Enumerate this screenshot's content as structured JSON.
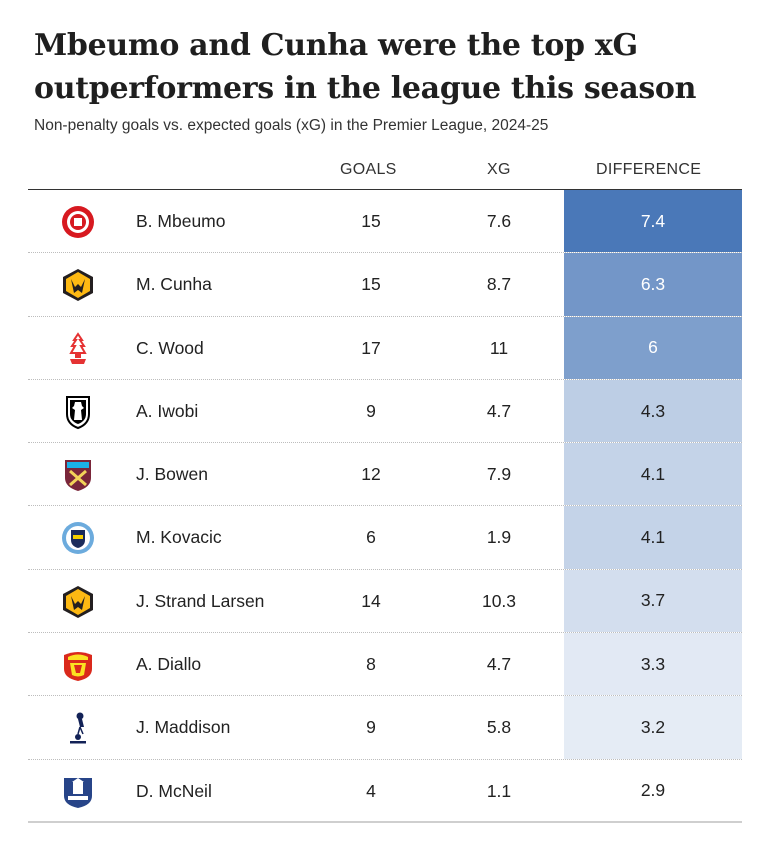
{
  "title": "Mbeumo and Cunha were the top xG outperformers in the league this season",
  "subtitle": "Non-penalty goals vs. expected goals (xG) in the Premier League, 2024-25",
  "columns": {
    "goals": "GOALS",
    "xg": "XG",
    "difference": "DIFFERENCE"
  },
  "chart_data": {
    "type": "table",
    "title": "Mbeumo and Cunha were the top xG outperformers in the league this season",
    "subtitle": "Non-penalty goals vs. expected goals (xG) in the Premier League, 2024-25",
    "columns": [
      "GOALS",
      "XG",
      "DIFFERENCE"
    ],
    "rows": [
      {
        "player": "B. Mbeumo",
        "club_icon": "brentford-crest-icon",
        "goals": "15",
        "xg": "7.6",
        "difference": "7.4",
        "diff_value": 7.4
      },
      {
        "player": "M. Cunha",
        "club_icon": "wolves-crest-icon",
        "goals": "15",
        "xg": "8.7",
        "difference": "6.3",
        "diff_value": 6.3
      },
      {
        "player": "C. Wood",
        "club_icon": "nottingham-forest-crest-icon",
        "goals": "17",
        "xg": "11",
        "difference": "6",
        "diff_value": 6
      },
      {
        "player": "A. Iwobi",
        "club_icon": "fulham-crest-icon",
        "goals": "9",
        "xg": "4.7",
        "difference": "4.3",
        "diff_value": 4.3
      },
      {
        "player": "J. Bowen",
        "club_icon": "west-ham-crest-icon",
        "goals": "12",
        "xg": "7.9",
        "difference": "4.1",
        "diff_value": 4.1
      },
      {
        "player": "M. Kovacic",
        "club_icon": "manchester-city-crest-icon",
        "goals": "6",
        "xg": "1.9",
        "difference": "4.1",
        "diff_value": 4.1
      },
      {
        "player": "J. Strand Larsen",
        "club_icon": "wolves-crest-icon",
        "goals": "14",
        "xg": "10.3",
        "difference": "3.7",
        "diff_value": 3.7
      },
      {
        "player": "A. Diallo",
        "club_icon": "manchester-united-crest-icon",
        "goals": "8",
        "xg": "4.7",
        "difference": "3.3",
        "diff_value": 3.3
      },
      {
        "player": "J. Maddison",
        "club_icon": "tottenham-crest-icon",
        "goals": "9",
        "xg": "5.8",
        "difference": "3.2",
        "diff_value": 3.2
      },
      {
        "player": "D. McNeil",
        "club_icon": "everton-crest-icon",
        "goals": "4",
        "xg": "1.1",
        "difference": "2.9",
        "diff_value": 2.9
      }
    ],
    "difference_scale": {
      "min": 2.9,
      "max": 7.4,
      "color_low": "#ffffff",
      "color_high": "#4a78b8"
    }
  },
  "colors": {
    "accent": "#4a78b8",
    "text": "#222222"
  }
}
